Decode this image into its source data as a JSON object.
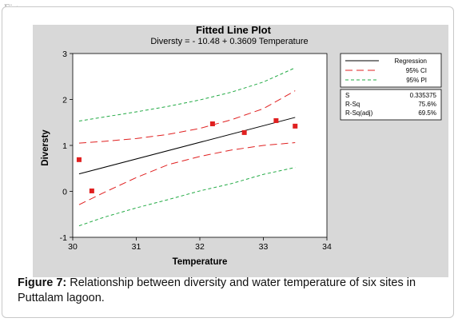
{
  "figure_label": "Figure",
  "caption": {
    "number": "Figure 7:",
    "text": "Relationship between diversity and water temperature of six sites in Puttalam lagoon."
  },
  "colors": {
    "plot_bg": "#d8d8d8",
    "regression": "#000000",
    "ci": "#e02020",
    "pi": "#22aa44",
    "points": "#e02020"
  },
  "chart_data": {
    "type": "scatter",
    "title": "Fitted Line Plot",
    "subtitle": "Diversty = - 10.48 + 0.3609 Temperature",
    "xlabel": "Temperature",
    "ylabel": "Diversty",
    "xlim": [
      30,
      34
    ],
    "ylim": [
      -1,
      3
    ],
    "xticks": [
      "30",
      "31",
      "32",
      "33",
      "34"
    ],
    "yticks": [
      "-1",
      "0",
      "1",
      "2",
      "3"
    ],
    "grid": false,
    "legend_position": "top-right",
    "points": [
      {
        "x": 30.1,
        "y": 0.69
      },
      {
        "x": 30.3,
        "y": 0.01
      },
      {
        "x": 32.2,
        "y": 1.47
      },
      {
        "x": 32.7,
        "y": 1.28
      },
      {
        "x": 33.2,
        "y": 1.54
      },
      {
        "x": 33.5,
        "y": 1.42
      }
    ],
    "series": [
      {
        "name": "Regression",
        "style": "solid",
        "x": [
          30.1,
          33.5
        ],
        "y": [
          0.38,
          1.61
        ]
      },
      {
        "name": "95% CI",
        "style": "dashed-long",
        "band": "upper",
        "x": [
          30.1,
          30.5,
          31.0,
          31.5,
          32.0,
          32.5,
          33.0,
          33.5
        ],
        "y": [
          1.05,
          1.09,
          1.15,
          1.24,
          1.37,
          1.56,
          1.8,
          2.19
        ]
      },
      {
        "name": "95% CI",
        "style": "dashed-long",
        "band": "lower",
        "x": [
          30.1,
          30.5,
          31.0,
          31.5,
          32.0,
          32.5,
          33.0,
          33.5
        ],
        "y": [
          -0.29,
          -0.02,
          0.3,
          0.58,
          0.76,
          0.9,
          1.0,
          1.06
        ]
      },
      {
        "name": "95% PI",
        "style": "dashed-short",
        "band": "upper",
        "x": [
          30.1,
          30.5,
          31.0,
          31.5,
          32.0,
          32.5,
          33.0,
          33.5
        ],
        "y": [
          1.53,
          1.62,
          1.73,
          1.85,
          1.99,
          2.16,
          2.38,
          2.69
        ]
      },
      {
        "name": "95% PI",
        "style": "dashed-short",
        "band": "lower",
        "x": [
          30.1,
          30.5,
          31.0,
          31.5,
          32.0,
          32.5,
          33.0,
          33.5
        ],
        "y": [
          -0.75,
          -0.56,
          -0.36,
          -0.18,
          0.01,
          0.17,
          0.37,
          0.52
        ]
      }
    ],
    "legend": [
      {
        "label": "Regression",
        "style": "solid"
      },
      {
        "label": "95% CI",
        "style": "dashed-long"
      },
      {
        "label": "95% PI",
        "style": "dashed-short"
      }
    ],
    "stats": [
      {
        "label": "S",
        "value": "0.335375"
      },
      {
        "label": "R-Sq",
        "value": "75.6%"
      },
      {
        "label": "R-Sq(adj)",
        "value": "69.5%"
      }
    ]
  }
}
